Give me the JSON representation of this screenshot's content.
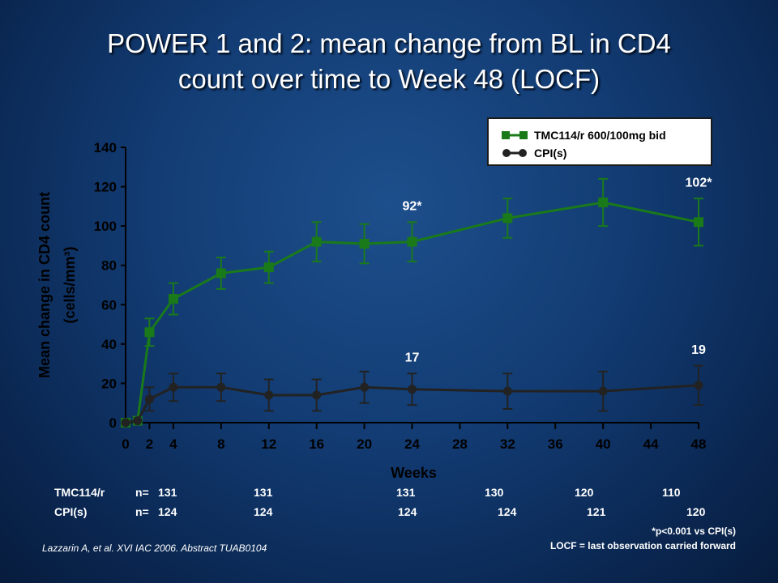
{
  "title_line1": "POWER 1 and 2: mean change from BL in CD4",
  "title_line2": "count over time to Week 48 (LOCF)",
  "colors": {
    "tmc": "#1a7a1a",
    "cpi": "#222222"
  },
  "chart_data": {
    "type": "line",
    "xlabel": "Weeks",
    "ylabel_line1": "Mean change in CD4 count",
    "ylabel_line2": "(cells/mm³)",
    "xlim": [
      0,
      48
    ],
    "ylim": [
      0,
      140
    ],
    "xticks": [
      "0",
      "2",
      "4",
      "8",
      "12",
      "16",
      "20",
      "24",
      "28",
      "32",
      "36",
      "40",
      "44",
      "48"
    ],
    "yticks": [
      "0",
      "20",
      "40",
      "60",
      "80",
      "100",
      "120",
      "140"
    ],
    "legend_position": "top-right",
    "series": [
      {
        "name": "TMC114/r 600/100mg bid",
        "marker": "square",
        "x": [
          0,
          1,
          2,
          4,
          8,
          12,
          16,
          20,
          24,
          32,
          40,
          48
        ],
        "y": [
          0,
          1,
          46,
          63,
          76,
          79,
          92,
          91,
          92,
          104,
          112,
          102
        ],
        "err": [
          0,
          0,
          7,
          8,
          8,
          8,
          10,
          10,
          10,
          10,
          12,
          12
        ]
      },
      {
        "name": "CPI(s)",
        "marker": "circle",
        "x": [
          0,
          1,
          2,
          4,
          8,
          12,
          16,
          20,
          24,
          32,
          40,
          48
        ],
        "y": [
          0,
          1,
          12,
          18,
          18,
          14,
          14,
          18,
          17,
          16,
          16,
          19
        ],
        "err": [
          0,
          0,
          6,
          7,
          7,
          8,
          8,
          8,
          8,
          9,
          10,
          10
        ]
      }
    ],
    "annotations": [
      {
        "text": "92*",
        "x": 24,
        "y": 108
      },
      {
        "text": "102*",
        "x": 48,
        "y": 120
      },
      {
        "text": "17",
        "x": 24,
        "y": 31
      },
      {
        "text": "19",
        "x": 48,
        "y": 35
      }
    ]
  },
  "n_table": {
    "rows": [
      {
        "arm": "TMC114/r",
        "prefix": "n=",
        "values": [
          "131",
          "131",
          "131",
          "130",
          "120",
          "110"
        ]
      },
      {
        "arm": "CPI(s)",
        "prefix": "n=",
        "values": [
          "124",
          "124",
          "124",
          "124",
          "121",
          "120"
        ]
      }
    ]
  },
  "footnote1": "*p<0.001 vs CPI(s)",
  "footnote2": "LOCF = last observation carried forward",
  "citation": "Lazzarin A, et al. XVI IAC 2006. Abstract TUAB0104"
}
